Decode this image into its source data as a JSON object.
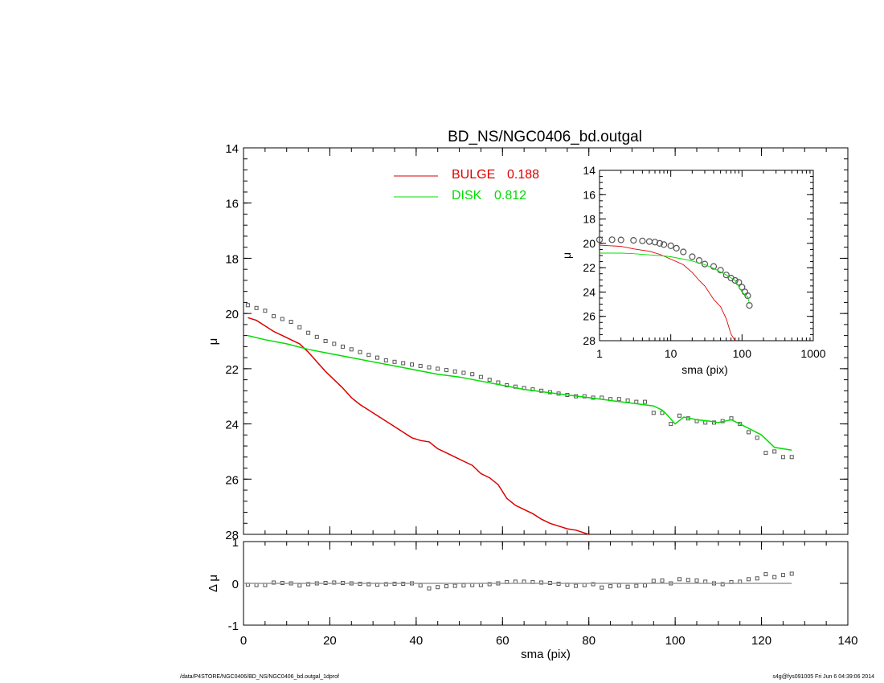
{
  "footer": {
    "path": "/data/P4STORE/NGC0406/BD_NS/NGC0406_bd.outgal_1dprof",
    "stamp": "s4g@fys091005  Fri Jun  6 04:39:06 2014"
  },
  "legend": [
    {
      "label": "BULGE",
      "value": "0.188",
      "color": "#dd0000"
    },
    {
      "label": "DISK",
      "value": "0.812",
      "color": "#00dd00"
    }
  ],
  "chart_data": [
    {
      "type": "scatter",
      "title": "BD_NS/NGC0406_bd.outgal",
      "xlabel": "sma (pix)",
      "ylabel": "μ",
      "xlim": [
        0,
        140
      ],
      "ylim": [
        28,
        14
      ],
      "y_reversed": true,
      "yticks": [
        "14",
        "16",
        "18",
        "20",
        "22",
        "24",
        "26",
        "28"
      ],
      "series": [
        {
          "name": "data",
          "style": "squares",
          "color": "#555555",
          "x": [
            1,
            3,
            5,
            7,
            9,
            11,
            13,
            15,
            17,
            19,
            21,
            23,
            25,
            27,
            29,
            31,
            33,
            35,
            37,
            39,
            41,
            43,
            45,
            47,
            49,
            51,
            53,
            55,
            57,
            59,
            61,
            63,
            65,
            67,
            69,
            71,
            73,
            75,
            77,
            79,
            81,
            83,
            85,
            87,
            89,
            91,
            93,
            95,
            97,
            99,
            101,
            103,
            105,
            107,
            109,
            111,
            113,
            115,
            117,
            119,
            121,
            123,
            125,
            127
          ],
          "y": [
            19.7,
            19.8,
            19.9,
            20.1,
            20.2,
            20.3,
            20.5,
            20.7,
            20.85,
            21.0,
            21.1,
            21.2,
            21.3,
            21.4,
            21.5,
            21.6,
            21.7,
            21.75,
            21.8,
            21.85,
            21.9,
            21.95,
            22.0,
            22.05,
            22.1,
            22.15,
            22.2,
            22.3,
            22.4,
            22.5,
            22.6,
            22.65,
            22.7,
            22.75,
            22.8,
            22.85,
            22.9,
            22.95,
            23.0,
            23.0,
            23.05,
            23.05,
            23.1,
            23.1,
            23.15,
            23.2,
            23.2,
            23.6,
            23.6,
            24.0,
            23.7,
            23.8,
            23.9,
            23.95,
            23.95,
            23.9,
            23.8,
            24.0,
            24.3,
            24.5,
            25.05,
            25.0,
            25.2,
            25.2
          ]
        },
        {
          "name": "BULGE",
          "style": "line",
          "color": "#dd0000",
          "x": [
            1,
            3,
            5,
            7,
            9,
            11,
            13,
            15,
            17,
            19,
            21,
            23,
            25,
            27,
            29,
            31,
            33,
            35,
            37,
            39,
            41,
            43,
            45,
            47,
            49,
            51,
            53,
            55,
            57,
            59,
            61,
            63,
            65,
            67,
            69,
            71,
            73,
            75,
            77,
            79,
            80
          ],
          "y": [
            20.15,
            20.25,
            20.45,
            20.65,
            20.8,
            20.95,
            21.1,
            21.4,
            21.75,
            22.1,
            22.4,
            22.7,
            23.05,
            23.3,
            23.5,
            23.7,
            23.9,
            24.1,
            24.3,
            24.5,
            24.6,
            24.65,
            24.9,
            25.05,
            25.2,
            25.35,
            25.5,
            25.8,
            25.95,
            26.2,
            26.7,
            26.95,
            27.1,
            27.25,
            27.45,
            27.6,
            27.7,
            27.8,
            27.85,
            27.95,
            28.0
          ]
        },
        {
          "name": "DISK",
          "style": "line",
          "color": "#00dd00",
          "x": [
            1,
            5,
            10,
            15,
            20,
            25,
            30,
            35,
            40,
            45,
            50,
            55,
            60,
            65,
            70,
            75,
            80,
            85,
            90,
            95,
            97,
            98,
            100,
            102,
            105,
            108,
            110,
            113,
            115,
            120,
            123,
            127
          ],
          "y": [
            20.8,
            20.95,
            21.1,
            21.3,
            21.45,
            21.6,
            21.75,
            21.9,
            22.05,
            22.2,
            22.3,
            22.45,
            22.6,
            22.75,
            22.85,
            22.95,
            23.05,
            23.15,
            23.25,
            23.35,
            23.5,
            23.65,
            24.0,
            23.75,
            23.85,
            23.9,
            23.95,
            23.85,
            24.0,
            24.4,
            24.85,
            24.95
          ]
        }
      ]
    },
    {
      "type": "scatter",
      "xlabel": "sma (pix)",
      "ylabel": "Δ μ",
      "xlim": [
        0,
        140
      ],
      "ylim": [
        -1,
        1
      ],
      "xticks": [
        "0",
        "20",
        "40",
        "60",
        "80",
        "100",
        "120",
        "140"
      ],
      "yticks": [
        "-1",
        "0",
        "1"
      ],
      "series": [
        {
          "name": "residual",
          "style": "squares",
          "color": "#555555",
          "x": [
            1,
            3,
            5,
            7,
            9,
            11,
            13,
            15,
            17,
            19,
            21,
            23,
            25,
            27,
            29,
            31,
            33,
            35,
            37,
            39,
            41,
            43,
            45,
            47,
            49,
            51,
            53,
            55,
            57,
            59,
            61,
            63,
            65,
            67,
            69,
            71,
            73,
            75,
            77,
            79,
            81,
            83,
            85,
            87,
            89,
            91,
            93,
            95,
            97,
            99,
            101,
            103,
            105,
            107,
            109,
            111,
            113,
            115,
            117,
            119,
            121,
            123,
            125,
            127
          ],
          "y": [
            -0.03,
            -0.04,
            -0.04,
            0.02,
            0.01,
            0.0,
            -0.05,
            -0.02,
            0.0,
            0.01,
            0.02,
            0.01,
            0.0,
            -0.01,
            -0.02,
            -0.03,
            -0.02,
            -0.01,
            -0.01,
            0.0,
            -0.05,
            -0.12,
            -0.09,
            -0.07,
            -0.06,
            -0.05,
            -0.04,
            -0.04,
            -0.02,
            0.0,
            0.03,
            0.04,
            0.04,
            0.03,
            0.02,
            0.01,
            -0.01,
            -0.03,
            -0.06,
            -0.04,
            -0.02,
            -0.1,
            -0.07,
            -0.05,
            -0.08,
            -0.06,
            -0.05,
            0.06,
            0.07,
            0.0,
            0.1,
            0.08,
            0.07,
            0.04,
            0.0,
            -0.02,
            0.03,
            0.04,
            0.1,
            0.12,
            0.22,
            0.15,
            0.2,
            0.23
          ]
        },
        {
          "name": "zero",
          "style": "line",
          "color": "#999999",
          "x": [
            0,
            127
          ],
          "y": [
            0,
            0
          ]
        }
      ]
    },
    {
      "type": "scatter",
      "xlabel": "sma (pix)",
      "ylabel": "μ",
      "x_scale": "log",
      "xlim": [
        1,
        1000
      ],
      "ylim": [
        28,
        14
      ],
      "y_reversed": true,
      "xticks": [
        "1",
        "10",
        "100",
        "1000"
      ],
      "yticks": [
        "14",
        "16",
        "18",
        "20",
        "22",
        "24",
        "26",
        "28"
      ],
      "series": [
        {
          "name": "data",
          "style": "circles",
          "color": "#555555",
          "x": [
            1,
            1.5,
            2,
            3,
            4,
            5,
            6,
            7,
            8,
            10,
            12,
            15,
            20,
            25,
            30,
            40,
            50,
            60,
            70,
            80,
            90,
            100,
            110,
            120,
            127
          ],
          "y": [
            19.7,
            19.7,
            19.72,
            19.75,
            19.8,
            19.85,
            19.9,
            20.0,
            20.1,
            20.2,
            20.4,
            20.7,
            21.1,
            21.4,
            21.7,
            21.9,
            22.2,
            22.6,
            22.85,
            23.05,
            23.2,
            23.6,
            24.0,
            24.3,
            25.1
          ]
        },
        {
          "name": "BULGE",
          "style": "line",
          "color": "#dd0000",
          "x": [
            1,
            2,
            3,
            5,
            7,
            10,
            15,
            20,
            25,
            30,
            40,
            50,
            60,
            70,
            80
          ],
          "y": [
            20.15,
            20.25,
            20.45,
            20.65,
            20.9,
            21.3,
            21.75,
            22.4,
            23.05,
            23.5,
            24.6,
            25.2,
            26.2,
            27.45,
            28.0
          ]
        },
        {
          "name": "DISK",
          "style": "line",
          "color": "#00dd00",
          "x": [
            1,
            2,
            3,
            5,
            7,
            10,
            15,
            20,
            30,
            40,
            60,
            80,
            100,
            120,
            127
          ],
          "y": [
            20.8,
            20.8,
            20.85,
            20.95,
            21.0,
            21.1,
            21.3,
            21.45,
            21.75,
            22.05,
            22.6,
            23.05,
            24.0,
            24.4,
            24.95
          ]
        }
      ]
    }
  ]
}
